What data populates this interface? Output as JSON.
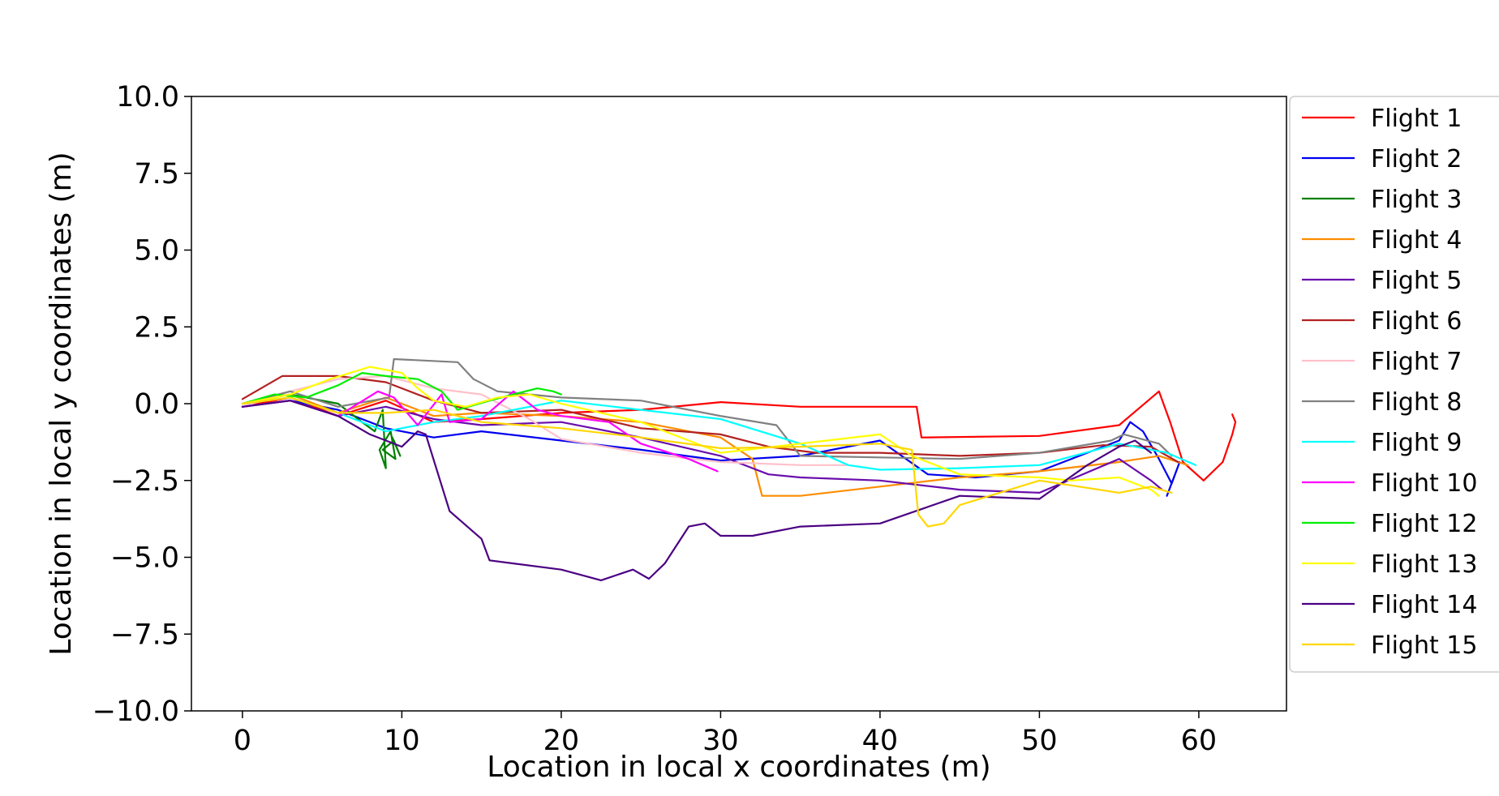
{
  "chart_data": {
    "type": "line",
    "title": "",
    "xlabel": "Location in local x coordinates (m)",
    "ylabel": "Location in local y coordinates (m)",
    "xlim": [
      -3.2,
      65.5
    ],
    "ylim": [
      -10.0,
      10.0
    ],
    "xticks": [
      0,
      10,
      20,
      30,
      40,
      50,
      60
    ],
    "xtick_labels": [
      "0",
      "10",
      "20",
      "30",
      "40",
      "50",
      "60"
    ],
    "yticks": [
      10.0,
      7.5,
      5.0,
      2.5,
      0.0,
      -2.5,
      -5.0,
      -7.5,
      -10.0
    ],
    "ytick_labels": [
      "10.0",
      "7.5",
      "5.0",
      "2.5",
      "0.0",
      "−2.5",
      "−5.0",
      "−7.5",
      "−10.0"
    ],
    "grid": false,
    "legend_position": "outside-right",
    "series": [
      {
        "name": "Flight 1",
        "color": "#ff0000",
        "x": [
          0,
          3,
          6,
          9,
          12,
          15,
          20,
          25,
          30,
          35,
          40,
          42.3,
          42.6,
          50,
          55,
          57.5,
          58.2,
          59,
          60.3,
          61.5,
          62.1,
          62.3,
          62.1
        ],
        "y": [
          -0.1,
          0.2,
          -0.4,
          0.1,
          -0.6,
          -0.5,
          -0.3,
          -0.2,
          0.05,
          -0.1,
          -0.1,
          -0.1,
          -1.1,
          -1.05,
          -0.7,
          0.4,
          -0.6,
          -1.9,
          -2.5,
          -1.9,
          -1.0,
          -0.6,
          -0.35
        ]
      },
      {
        "name": "Flight 2",
        "color": "#0000ee",
        "x": [
          0,
          3,
          6,
          9,
          12,
          15,
          20,
          25,
          30,
          35,
          40,
          43,
          46,
          50,
          55,
          55.7,
          56.5,
          57.5,
          58.3,
          58.8,
          58.0
        ],
        "y": [
          -0.1,
          0.1,
          -0.2,
          -0.8,
          -1.1,
          -0.9,
          -1.2,
          -1.5,
          -1.85,
          -1.7,
          -1.2,
          -2.3,
          -2.4,
          -2.2,
          -1.2,
          -0.6,
          -0.9,
          -1.8,
          -2.6,
          -1.9,
          -3.0
        ]
      },
      {
        "name": "Flight 3",
        "color": "#008000",
        "x": [
          0,
          3,
          6,
          7.5,
          8.3,
          8.8,
          9.0,
          8.6,
          9.3,
          9.6,
          8.8,
          9.5,
          9.9,
          9.4
        ],
        "y": [
          0.0,
          0.3,
          0.0,
          -0.6,
          -0.9,
          -0.2,
          -2.1,
          -1.5,
          -0.9,
          -1.8,
          -1.5,
          -1.2,
          -1.7,
          -1.1
        ]
      },
      {
        "name": "Flight 4",
        "color": "#ff8c00",
        "x": [
          0,
          3,
          6,
          9,
          12,
          15,
          20,
          25,
          30,
          32,
          32.6,
          35,
          40,
          45,
          50,
          55,
          57.5,
          59.3
        ],
        "y": [
          0.0,
          0.3,
          -0.3,
          0.2,
          -0.4,
          -0.3,
          -0.4,
          -0.6,
          -1.1,
          -1.8,
          -3.0,
          -3.0,
          -2.7,
          -2.4,
          -2.2,
          -1.9,
          -1.7,
          -2.0
        ]
      },
      {
        "name": "Flight 5",
        "color": "#6a0dad",
        "x": [
          0,
          3,
          6,
          9,
          12,
          15,
          20,
          25,
          30,
          33,
          35,
          40,
          45,
          50,
          55,
          57,
          57.7
        ],
        "y": [
          -0.1,
          0.1,
          -0.4,
          -0.1,
          -0.5,
          -0.7,
          -0.6,
          -1.1,
          -1.7,
          -2.3,
          -2.4,
          -2.5,
          -2.8,
          -2.9,
          -1.8,
          -2.5,
          -2.8
        ]
      },
      {
        "name": "Flight 6",
        "color": "#b22222",
        "x": [
          0,
          2.5,
          6,
          9,
          12,
          15,
          20,
          25,
          30,
          33,
          36,
          40,
          45,
          50,
          54,
          57,
          58.7
        ],
        "y": [
          0.15,
          0.9,
          0.9,
          0.7,
          0.1,
          -0.3,
          -0.2,
          -0.8,
          -1.0,
          -1.4,
          -1.6,
          -1.6,
          -1.7,
          -1.6,
          -1.35,
          -1.4,
          -1.9
        ]
      },
      {
        "name": "Flight 7",
        "color": "#ffc0cb",
        "x": [
          0,
          3,
          6,
          9,
          12,
          15,
          18,
          20,
          25,
          30,
          35,
          38
        ],
        "y": [
          -0.1,
          0.4,
          0.8,
          0.9,
          0.5,
          0.3,
          -0.5,
          -1.15,
          -1.6,
          -1.9,
          -2.0,
          -2.0
        ]
      },
      {
        "name": "Flight 8",
        "color": "#808080",
        "x": [
          0,
          3,
          6,
          9.2,
          9.5,
          13.5,
          14.5,
          16,
          20,
          25,
          30,
          33.5,
          35,
          40,
          45,
          50,
          54.5,
          55.3,
          57.5,
          58.3
        ],
        "y": [
          0.0,
          0.4,
          -0.1,
          0.2,
          1.45,
          1.35,
          0.8,
          0.4,
          0.2,
          0.1,
          -0.4,
          -0.7,
          -1.7,
          -1.75,
          -1.8,
          -1.6,
          -1.2,
          -1.0,
          -1.3,
          -1.7
        ]
      },
      {
        "name": "Flight 9",
        "color": "#00ffff",
        "x": [
          0,
          3,
          6,
          9,
          12,
          15,
          20,
          25,
          30,
          35,
          38,
          40,
          45,
          50,
          55,
          58,
          59.8
        ],
        "y": [
          0.0,
          0.2,
          -0.3,
          -0.9,
          -0.6,
          -0.4,
          0.1,
          -0.2,
          -0.5,
          -1.3,
          -2.0,
          -2.15,
          -2.1,
          -2.0,
          -1.3,
          -1.6,
          -2.0
        ]
      },
      {
        "name": "Flight 10",
        "color": "#ff00ff",
        "x": [
          0,
          3,
          6,
          8.5,
          9.5,
          11,
          12.5,
          13,
          15,
          17,
          18.5,
          20,
          23,
          25,
          28,
          29.8
        ],
        "y": [
          -0.1,
          0.1,
          -0.4,
          0.4,
          0.2,
          -0.7,
          0.3,
          -0.6,
          -0.5,
          0.4,
          -0.2,
          -0.4,
          -0.6,
          -1.3,
          -1.8,
          -2.2
        ]
      },
      {
        "name": "Flight 12",
        "color": "#00ee00",
        "x": [
          0,
          2,
          4,
          6,
          7.5,
          9,
          11,
          12.5,
          13.5,
          15.5,
          17,
          18.5,
          19.5,
          20
        ],
        "y": [
          0.0,
          0.3,
          0.2,
          0.6,
          1.0,
          0.9,
          0.8,
          0.4,
          -0.2,
          0.1,
          0.3,
          0.5,
          0.4,
          0.3
        ]
      },
      {
        "name": "Flight 13",
        "color": "#ffff00",
        "x": [
          0,
          3,
          5.5,
          8,
          10,
          11,
          12,
          14,
          16,
          18,
          20,
          25,
          30,
          35,
          40,
          42,
          45,
          50,
          52,
          55,
          57,
          57.5
        ],
        "y": [
          0.0,
          0.3,
          0.8,
          1.2,
          1.0,
          0.5,
          0.1,
          -0.1,
          0.2,
          0.3,
          0.0,
          -0.6,
          -1.6,
          -1.3,
          -1.0,
          -1.7,
          -2.3,
          -2.4,
          -2.5,
          -2.4,
          -2.8,
          -3.0
        ]
      },
      {
        "name": "Flight 14",
        "color": "#4b0082",
        "x": [
          0,
          3,
          6,
          8,
          10,
          11,
          11.5,
          13,
          15,
          15.5,
          17,
          20,
          22.5,
          24.5,
          25.5,
          26.5,
          28,
          29,
          30,
          32,
          35,
          40,
          45,
          50,
          53,
          55,
          56,
          57
        ],
        "y": [
          -0.1,
          0.1,
          -0.4,
          -1.0,
          -1.4,
          -0.9,
          -1.0,
          -3.5,
          -4.4,
          -5.1,
          -5.2,
          -5.4,
          -5.75,
          -5.4,
          -5.7,
          -5.2,
          -4.0,
          -3.9,
          -4.3,
          -4.3,
          -4.0,
          -3.9,
          -3.0,
          -3.1,
          -2.0,
          -1.4,
          -1.2,
          -1.6
        ]
      },
      {
        "name": "Flight 15",
        "color": "#ffd700",
        "x": [
          0,
          3,
          6,
          9,
          12,
          15,
          20,
          25,
          30,
          35,
          40,
          42,
          42.4,
          43,
          44,
          45,
          50,
          55,
          57,
          58.3
        ],
        "y": [
          0.0,
          0.2,
          -0.3,
          -0.3,
          -0.2,
          -0.6,
          -0.8,
          -1.1,
          -1.45,
          -1.4,
          -1.3,
          -1.5,
          -3.6,
          -4.0,
          -3.9,
          -3.3,
          -2.5,
          -2.9,
          -2.7,
          -2.9
        ]
      }
    ]
  }
}
